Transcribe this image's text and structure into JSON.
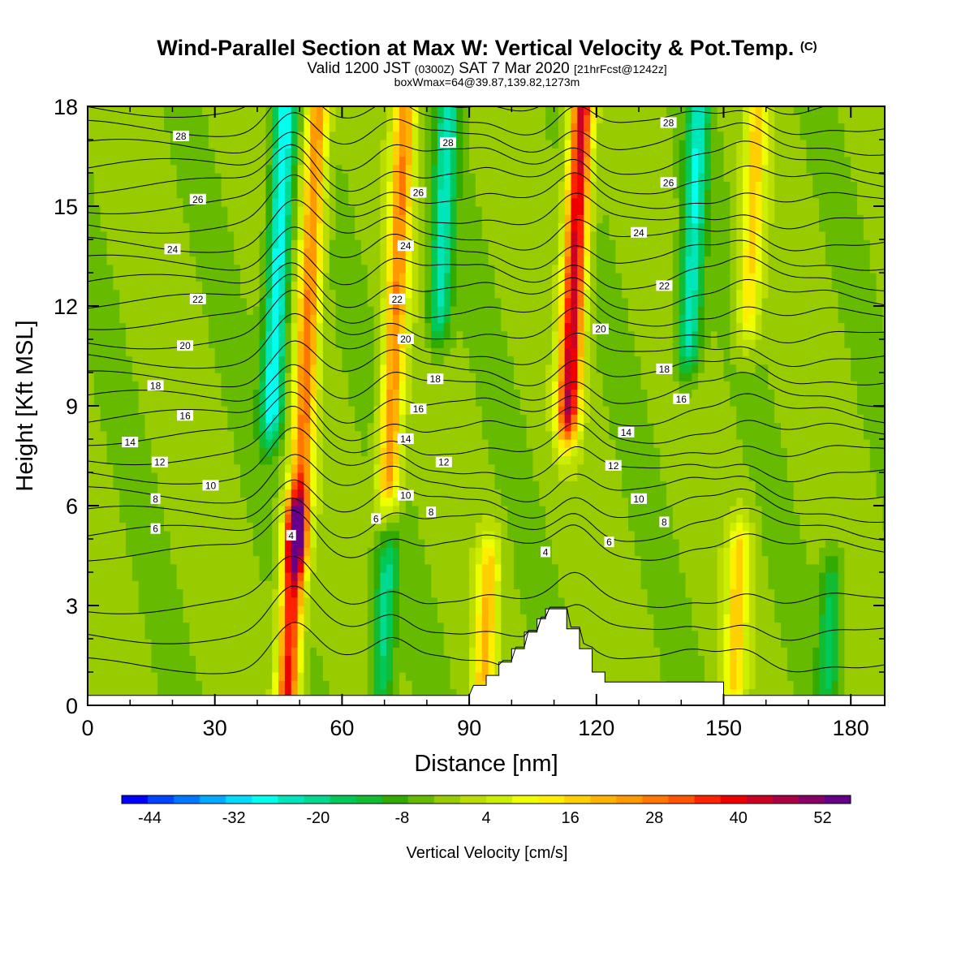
{
  "header": {
    "title": "Wind-Parallel Section at Max W: Vertical Velocity & Pot.Temp.",
    "title_mark": "(C)",
    "valid_prefix": "Valid 1200 JST",
    "valid_utc": "(0300Z)",
    "valid_date": "SAT 7 Mar 2020",
    "forecast_info": "[21hrFcst@1242z]",
    "box_info": "boxWmax=64@39.87,139.82,1273m"
  },
  "chart_data": {
    "type": "heatmap",
    "title": "Wind-Parallel Section at Max W: Vertical Velocity & Pot.Temp.",
    "xlabel": "Distance [nm]",
    "ylabel": "Height [Kft MSL]",
    "xlim": [
      0,
      188
    ],
    "ylim": [
      0,
      18
    ],
    "x_ticks": [
      "0",
      "30",
      "60",
      "90",
      "120",
      "150",
      "180"
    ],
    "y_ticks": [
      "0",
      "3",
      "6",
      "9",
      "12",
      "15",
      "18"
    ],
    "x_tick_values": [
      0,
      30,
      60,
      90,
      120,
      150,
      180
    ],
    "y_tick_values": [
      0,
      3,
      6,
      9,
      12,
      15,
      18
    ],
    "colorbar": {
      "label": "Vertical Velocity [cm/s]",
      "min": -48,
      "max": 56,
      "step": 4,
      "tick_labels": [
        "-44",
        "-32",
        "-20",
        "-8",
        "4",
        "16",
        "28",
        "40",
        "52"
      ],
      "tick_values": [
        -44,
        -32,
        -20,
        -8,
        4,
        16,
        28,
        40,
        52
      ],
      "colors": [
        "#0000ff",
        "#0044ff",
        "#0077ff",
        "#00aaff",
        "#00ddff",
        "#00ffee",
        "#00e6bb",
        "#00d98f",
        "#00c95a",
        "#11bb33",
        "#33aa00",
        "#66bb00",
        "#99cc00",
        "#bbdd00",
        "#ccee00",
        "#eeff00",
        "#ffee00",
        "#ffd000",
        "#ffb300",
        "#ff9900",
        "#ff7700",
        "#ff5500",
        "#ff2200",
        "#ee0000",
        "#cc0022",
        "#aa0044",
        "#880066",
        "#660088"
      ]
    },
    "vertical_velocity_updrafts": [
      {
        "x": 48,
        "z_bottom": 0.5,
        "z_top": 5.3,
        "w": 45
      },
      {
        "x": 52,
        "z_bottom": 5.0,
        "z_top": 18.0,
        "w": 32
      },
      {
        "x": 73,
        "z_bottom": 7.0,
        "z_top": 18.0,
        "w": 30
      },
      {
        "x": 94,
        "z_bottom": 0.8,
        "z_top": 4.0,
        "w": 22
      },
      {
        "x": 115,
        "z_bottom": 9.0,
        "z_top": 18.0,
        "w": 50
      },
      {
        "x": 153,
        "z_bottom": 0.8,
        "z_top": 4.5,
        "w": 20
      },
      {
        "x": 157,
        "z_bottom": 12.0,
        "z_top": 18.0,
        "w": 20
      }
    ],
    "vertical_velocity_downdrafts": [
      {
        "x": 45,
        "z_bottom": 9.0,
        "z_top": 18.0,
        "w": -30
      },
      {
        "x": 70,
        "z_bottom": 1.0,
        "z_top": 4.0,
        "w": -18
      },
      {
        "x": 84,
        "z_bottom": 12.0,
        "z_top": 18.0,
        "w": -22
      },
      {
        "x": 143,
        "z_bottom": 11.0,
        "z_top": 18.0,
        "w": -24
      },
      {
        "x": 175,
        "z_bottom": 1.0,
        "z_top": 3.5,
        "w": -14
      }
    ],
    "terrain": [
      [
        0,
        0.3
      ],
      [
        90,
        0.3
      ],
      [
        91,
        0.6
      ],
      [
        94,
        0.6
      ],
      [
        94,
        0.9
      ],
      [
        97,
        0.9
      ],
      [
        97,
        1.3
      ],
      [
        100,
        1.3
      ],
      [
        100,
        1.7
      ],
      [
        103,
        1.7
      ],
      [
        103,
        2.2
      ],
      [
        106,
        2.2
      ],
      [
        106,
        2.6
      ],
      [
        108,
        2.6
      ],
      [
        108,
        2.9
      ],
      [
        113,
        2.9
      ],
      [
        113,
        2.3
      ],
      [
        116,
        2.3
      ],
      [
        116,
        1.7
      ],
      [
        119,
        1.7
      ],
      [
        119,
        1.0
      ],
      [
        122,
        1.0
      ],
      [
        122,
        0.7
      ],
      [
        150,
        0.7
      ],
      [
        150,
        0.3
      ],
      [
        188,
        0.3
      ]
    ],
    "theta_contours": {
      "units": "C",
      "label_values": [
        "4",
        "6",
        "8",
        "10",
        "12",
        "14",
        "16",
        "18",
        "20",
        "22",
        "24",
        "26",
        "28"
      ],
      "interval": 1,
      "levels": [
        2,
        3,
        4,
        5,
        6,
        7,
        8,
        9,
        10,
        11,
        12,
        13,
        14,
        15,
        16,
        17,
        18,
        19,
        20,
        21,
        22,
        23,
        24,
        25,
        26,
        27,
        28,
        29
      ]
    },
    "contour_labels": [
      {
        "text": "28",
        "x": 22,
        "z": 17.1
      },
      {
        "text": "28",
        "x": 85,
        "z": 16.9
      },
      {
        "text": "28",
        "x": 137,
        "z": 17.5
      },
      {
        "text": "26",
        "x": 26,
        "z": 15.2
      },
      {
        "text": "26",
        "x": 78,
        "z": 15.4
      },
      {
        "text": "26",
        "x": 137,
        "z": 15.7
      },
      {
        "text": "24",
        "x": 20,
        "z": 13.7
      },
      {
        "text": "24",
        "x": 75,
        "z": 13.8
      },
      {
        "text": "24",
        "x": 130,
        "z": 14.2
      },
      {
        "text": "22",
        "x": 26,
        "z": 12.2
      },
      {
        "text": "22",
        "x": 73,
        "z": 12.2
      },
      {
        "text": "22",
        "x": 136,
        "z": 12.6
      },
      {
        "text": "20",
        "x": 23,
        "z": 10.8
      },
      {
        "text": "20",
        "x": 75,
        "z": 11.0
      },
      {
        "text": "20",
        "x": 121,
        "z": 11.3
      },
      {
        "text": "18",
        "x": 16,
        "z": 9.6
      },
      {
        "text": "18",
        "x": 82,
        "z": 9.8
      },
      {
        "text": "18",
        "x": 136,
        "z": 10.1
      },
      {
        "text": "16",
        "x": 23,
        "z": 8.7
      },
      {
        "text": "16",
        "x": 78,
        "z": 8.9
      },
      {
        "text": "16",
        "x": 140,
        "z": 9.2
      },
      {
        "text": "14",
        "x": 10,
        "z": 7.9
      },
      {
        "text": "14",
        "x": 75,
        "z": 8.0
      },
      {
        "text": "14",
        "x": 127,
        "z": 8.2
      },
      {
        "text": "12",
        "x": 17,
        "z": 7.3
      },
      {
        "text": "12",
        "x": 84,
        "z": 7.3
      },
      {
        "text": "12",
        "x": 124,
        "z": 7.2
      },
      {
        "text": "10",
        "x": 29,
        "z": 6.6
      },
      {
        "text": "10",
        "x": 75,
        "z": 6.3
      },
      {
        "text": "10",
        "x": 130,
        "z": 6.2
      },
      {
        "text": "8",
        "x": 16,
        "z": 6.2
      },
      {
        "text": "8",
        "x": 81,
        "z": 5.8
      },
      {
        "text": "8",
        "x": 136,
        "z": 5.5
      },
      {
        "text": "6",
        "x": 16,
        "z": 5.3
      },
      {
        "text": "6",
        "x": 68,
        "z": 5.6
      },
      {
        "text": "6",
        "x": 123,
        "z": 4.9
      },
      {
        "text": "4",
        "x": 48,
        "z": 5.1
      },
      {
        "text": "4",
        "x": 108,
        "z": 4.6
      }
    ]
  }
}
